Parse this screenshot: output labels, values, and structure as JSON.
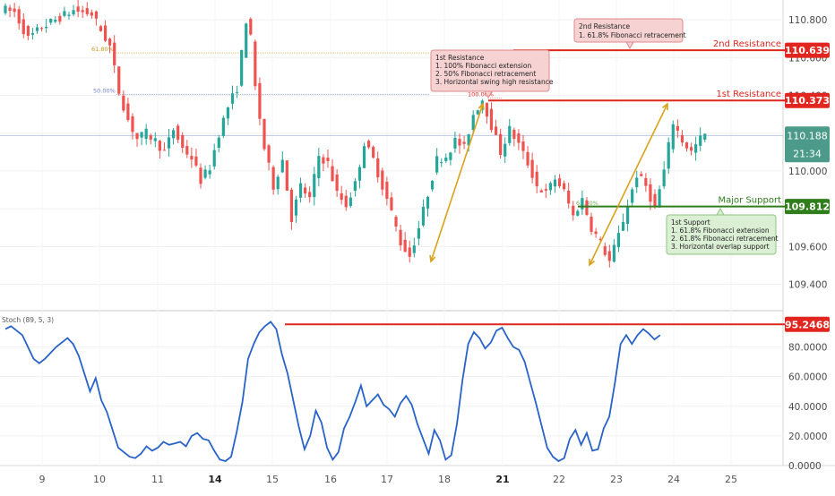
{
  "colors": {
    "background": "#ffffff",
    "bull": "#26a69a",
    "bear": "#ef5350",
    "resistance": "#e0261e",
    "support": "#2f7d1b",
    "stoch": "#2962c8",
    "arrow": "#d9a21b",
    "price_label": "#4c9a8a"
  },
  "chart_data": [
    {
      "type": "candlestick",
      "title": "",
      "x_tick_labels": [
        "9",
        "10",
        "11",
        "14",
        "15",
        "16",
        "17",
        "18",
        "21",
        "22",
        "23",
        "24",
        "25"
      ],
      "x_tick_bold": [
        "14",
        "21"
      ],
      "y_tick_labels": [
        "110.800",
        "110.600",
        "110.400",
        "110.200",
        "110.000",
        "109.800",
        "109.600",
        "109.400"
      ],
      "ylim": [
        109.265,
        110.905
      ],
      "series": [
        {
          "name": "ohlc_path",
          "values": [
            [
              0,
              110.86
            ],
            [
              3,
              110.84
            ],
            [
              6,
              110.7
            ],
            [
              9,
              110.76
            ],
            [
              12,
              110.8
            ],
            [
              16,
              110.85
            ],
            [
              20,
              110.83
            ],
            [
              24,
              110.66
            ],
            [
              26,
              110.42
            ],
            [
              28,
              110.27
            ],
            [
              30,
              110.17
            ],
            [
              32,
              110.2
            ],
            [
              34,
              110.16
            ],
            [
              36,
              110.1
            ],
            [
              38,
              110.22
            ],
            [
              40,
              110.12
            ],
            [
              42,
              110.07
            ],
            [
              44,
              109.95
            ],
            [
              46,
              110.02
            ],
            [
              48,
              110.2
            ],
            [
              50,
              110.34
            ],
            [
              52,
              110.44
            ],
            [
              53,
              110.62
            ],
            [
              54,
              110.8
            ],
            [
              55,
              110.7
            ],
            [
              56,
              110.44
            ],
            [
              58,
              110.12
            ],
            [
              60,
              109.92
            ],
            [
              62,
              110.06
            ],
            [
              64,
              109.75
            ],
            [
              66,
              109.92
            ],
            [
              68,
              109.85
            ],
            [
              70,
              110.08
            ],
            [
              72,
              110.04
            ],
            [
              74,
              109.88
            ],
            [
              76,
              109.82
            ],
            [
              78,
              109.93
            ],
            [
              80,
              110.15
            ],
            [
              82,
              110.06
            ],
            [
              84,
              109.92
            ],
            [
              86,
              109.78
            ],
            [
              88,
              109.62
            ],
            [
              90,
              109.55
            ],
            [
              92,
              109.7
            ],
            [
              94,
              109.88
            ],
            [
              96,
              110.06
            ],
            [
              98,
              110.08
            ],
            [
              100,
              110.16
            ],
            [
              102,
              110.12
            ],
            [
              104,
              110.3
            ],
            [
              106,
              110.38
            ],
            [
              108,
              110.24
            ],
            [
              110,
              110.1
            ],
            [
              112,
              110.22
            ],
            [
              114,
              110.14
            ],
            [
              116,
              110.04
            ],
            [
              118,
              109.92
            ],
            [
              120,
              109.88
            ],
            [
              122,
              109.96
            ],
            [
              124,
              109.89
            ],
            [
              126,
              109.76
            ],
            [
              128,
              109.85
            ],
            [
              130,
              109.7
            ],
            [
              132,
              109.62
            ],
            [
              134,
              109.52
            ],
            [
              136,
              109.66
            ],
            [
              138,
              109.82
            ],
            [
              140,
              109.98
            ],
            [
              142,
              109.92
            ],
            [
              144,
              109.8
            ],
            [
              146,
              110.0
            ],
            [
              148,
              110.26
            ],
            [
              150,
              110.16
            ],
            [
              152,
              110.1
            ],
            [
              154,
              110.17
            ],
            [
              155,
              110.19
            ]
          ]
        }
      ],
      "fibonacci_levels": [
        {
          "label": "61.80%",
          "value": 110.625
        },
        {
          "label": "50.00%",
          "value": 110.405
        },
        {
          "label": "100.00%",
          "value": 110.385
        },
        {
          "label": "61.80%",
          "value": 109.81
        }
      ],
      "horizontal_levels": [
        {
          "name": "2nd Resistance",
          "value": 110.639,
          "label": "110.639"
        },
        {
          "name": "1st Resistance",
          "value": 110.373,
          "label": "110.373"
        },
        {
          "name": "Major Support",
          "value": 109.812,
          "label": "109.812"
        }
      ],
      "current_price": {
        "value": 110.188,
        "label": "110.188",
        "timer": "21:34"
      },
      "annotations": [
        {
          "id": "second_resistance_note",
          "lines": [
            "2nd Resistance",
            "1. 61.8% Fibonacci retracement"
          ]
        },
        {
          "id": "first_resistance_note",
          "lines": [
            "1st Resistance",
            "1. 100% Fibonacci extension",
            "2. 50% Fibonacci retracement",
            "3. Horizontal swing high resistance"
          ]
        },
        {
          "id": "first_support_note",
          "lines": [
            "1st Support",
            "1. 61.8% Fibonacci extension",
            "2. 61.8% Fibonacci retracement",
            "3. Horizontal overlap support"
          ]
        }
      ]
    },
    {
      "type": "line",
      "title": "Stoch (89, 5, 3)",
      "y_tick_labels": [
        "80.0000",
        "60.0000",
        "40.0000",
        "20.0000",
        "0.0000"
      ],
      "ylim": [
        0,
        100
      ],
      "threshold": {
        "value": 95.2468,
        "label": "95.2468"
      },
      "series": [
        {
          "name": "Stoch",
          "values": [
            [
              0,
              92
            ],
            [
              1,
              94
            ],
            [
              3,
              88
            ],
            [
              5,
              72
            ],
            [
              6,
              69
            ],
            [
              7,
              72
            ],
            [
              9,
              80
            ],
            [
              11,
              86
            ],
            [
              12,
              82
            ],
            [
              13,
              74
            ],
            [
              14,
              62
            ],
            [
              15,
              50
            ],
            [
              16,
              59
            ],
            [
              17,
              44
            ],
            [
              18,
              36
            ],
            [
              19,
              24
            ],
            [
              20,
              12
            ],
            [
              21,
              9
            ],
            [
              22,
              6
            ],
            [
              23,
              5
            ],
            [
              24,
              8
            ],
            [
              25,
              13
            ],
            [
              26,
              10
            ],
            [
              27,
              12
            ],
            [
              28,
              16
            ],
            [
              29,
              14
            ],
            [
              30,
              15
            ],
            [
              31,
              16
            ],
            [
              32,
              13
            ],
            [
              33,
              20
            ],
            [
              34,
              22
            ],
            [
              35,
              18
            ],
            [
              36,
              17
            ],
            [
              37,
              10
            ],
            [
              38,
              4
            ],
            [
              39,
              3
            ],
            [
              40,
              6
            ],
            [
              41,
              23
            ],
            [
              42,
              43
            ],
            [
              43,
              72
            ],
            [
              44,
              82
            ],
            [
              45,
              90
            ],
            [
              46,
              94
            ],
            [
              47,
              97
            ],
            [
              48,
              92
            ],
            [
              49,
              75
            ],
            [
              50,
              62
            ],
            [
              51,
              44
            ],
            [
              52,
              26
            ],
            [
              53,
              11
            ],
            [
              54,
              20
            ],
            [
              55,
              37
            ],
            [
              56,
              29
            ],
            [
              57,
              12
            ],
            [
              58,
              4
            ],
            [
              59,
              9
            ],
            [
              60,
              25
            ],
            [
              61,
              33
            ],
            [
              62,
              43
            ],
            [
              63,
              54
            ],
            [
              64,
              40
            ],
            [
              65,
              44
            ],
            [
              66,
              48
            ],
            [
              67,
              41
            ],
            [
              68,
              38
            ],
            [
              69,
              33
            ],
            [
              70,
              42
            ],
            [
              71,
              47
            ],
            [
              72,
              41
            ],
            [
              73,
              28
            ],
            [
              74,
              18
            ],
            [
              75,
              8
            ],
            [
              76,
              24
            ],
            [
              77,
              17
            ],
            [
              78,
              4
            ],
            [
              79,
              7
            ],
            [
              80,
              28
            ],
            [
              81,
              58
            ],
            [
              82,
              82
            ],
            [
              83,
              90
            ],
            [
              84,
              86
            ],
            [
              85,
              79
            ],
            [
              86,
              83
            ],
            [
              87,
              91
            ],
            [
              88,
              93
            ],
            [
              89,
              86
            ],
            [
              90,
              80
            ],
            [
              91,
              78
            ],
            [
              92,
              70
            ],
            [
              93,
              56
            ],
            [
              94,
              42
            ],
            [
              95,
              27
            ],
            [
              96,
              12
            ],
            [
              97,
              6
            ],
            [
              98,
              3
            ],
            [
              99,
              5
            ],
            [
              100,
              18
            ],
            [
              101,
              24
            ],
            [
              102,
              14
            ],
            [
              103,
              22
            ],
            [
              104,
              10
            ],
            [
              105,
              11
            ],
            [
              106,
              25
            ],
            [
              107,
              33
            ],
            [
              108,
              56
            ],
            [
              109,
              82
            ],
            [
              110,
              88
            ],
            [
              111,
              82
            ],
            [
              112,
              88
            ],
            [
              113,
              92
            ],
            [
              114,
              89
            ],
            [
              115,
              85
            ],
            [
              116,
              88
            ]
          ]
        }
      ]
    }
  ]
}
